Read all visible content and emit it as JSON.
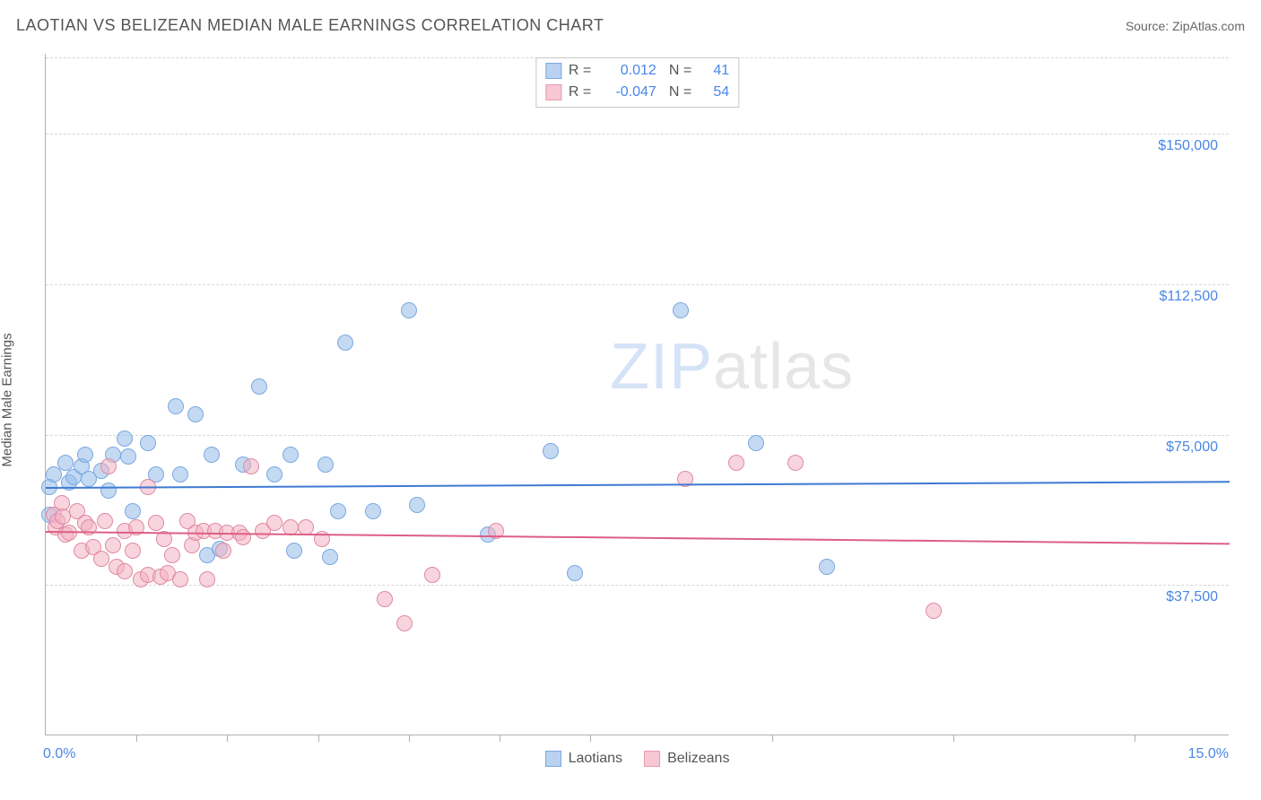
{
  "header": {
    "title": "LAOTIAN VS BELIZEAN MEDIAN MALE EARNINGS CORRELATION CHART",
    "source_label": "Source:",
    "source_value": "ZipAtlas.com"
  },
  "axes": {
    "ylabel": "Median Male Earnings",
    "xmin_label": "0.0%",
    "xmax_label": "15.0%",
    "xlim": [
      0,
      15
    ],
    "ylim": [
      0,
      170000
    ],
    "ygrid": [
      {
        "value": 37500,
        "label": "$37,500"
      },
      {
        "value": 75000,
        "label": "$75,000"
      },
      {
        "value": 112500,
        "label": "$112,500"
      },
      {
        "value": 150000,
        "label": "$150,000"
      }
    ],
    "xticks": [
      1.15,
      2.3,
      3.45,
      4.6,
      5.75,
      6.9,
      9.2,
      11.5,
      13.8
    ]
  },
  "watermark": {
    "zip": "ZIP",
    "atlas": "atlas"
  },
  "legend_top": {
    "rows": [
      {
        "swatch_fill": "#b9d2f1",
        "swatch_border": "#7ba8e0",
        "r_label": "R =",
        "r_value": "0.012",
        "n_label": "N =",
        "n_value": "41"
      },
      {
        "swatch_fill": "#f7c7d4",
        "swatch_border": "#e79ab0",
        "r_label": "R =",
        "r_value": "-0.047",
        "n_label": "N =",
        "n_value": "54"
      }
    ]
  },
  "legend_bottom": {
    "items": [
      {
        "swatch_fill": "#b9d2f1",
        "swatch_border": "#7ba8e0",
        "label": "Laotians"
      },
      {
        "swatch_fill": "#f7c7d4",
        "swatch_border": "#e79ab0",
        "label": "Belizeans"
      }
    ]
  },
  "series": [
    {
      "name": "laotians",
      "point_fill": "rgba(147,188,234,0.55)",
      "point_stroke": "#7ba8e0",
      "point_radius": 9,
      "trend_color": "#3f7ad1",
      "trend_y_at_xmin": 62000,
      "trend_y_at_xmax": 63500,
      "points": [
        [
          0.05,
          62000
        ],
        [
          0.05,
          55000
        ],
        [
          0.1,
          65000
        ],
        [
          0.25,
          68000
        ],
        [
          0.3,
          63000
        ],
        [
          0.35,
          64500
        ],
        [
          0.45,
          67000
        ],
        [
          0.55,
          64000
        ],
        [
          0.5,
          70000
        ],
        [
          0.7,
          66000
        ],
        [
          0.8,
          61000
        ],
        [
          0.85,
          70000
        ],
        [
          1.0,
          74000
        ],
        [
          1.05,
          69500
        ],
        [
          1.1,
          56000
        ],
        [
          1.3,
          73000
        ],
        [
          1.4,
          65000
        ],
        [
          1.65,
          82000
        ],
        [
          1.7,
          65000
        ],
        [
          1.9,
          80000
        ],
        [
          2.05,
          45000
        ],
        [
          2.1,
          70000
        ],
        [
          2.2,
          46500
        ],
        [
          2.5,
          67500
        ],
        [
          2.7,
          87000
        ],
        [
          2.9,
          65000
        ],
        [
          3.1,
          70000
        ],
        [
          3.15,
          46000
        ],
        [
          3.55,
          67500
        ],
        [
          3.6,
          44500
        ],
        [
          3.7,
          56000
        ],
        [
          3.8,
          98000
        ],
        [
          4.15,
          56000
        ],
        [
          4.6,
          106000
        ],
        [
          4.7,
          57500
        ],
        [
          5.6,
          50000
        ],
        [
          6.4,
          71000
        ],
        [
          6.7,
          40500
        ],
        [
          8.05,
          106000
        ],
        [
          9.0,
          73000
        ],
        [
          9.9,
          42000
        ]
      ]
    },
    {
      "name": "belizeans",
      "point_fill": "rgba(243,176,195,0.55)",
      "point_stroke": "#e08aa3",
      "point_radius": 9,
      "trend_color": "#dd5e87",
      "trend_y_at_xmin": 51000,
      "trend_y_at_xmax": 48000,
      "points": [
        [
          0.1,
          55000
        ],
        [
          0.12,
          52000
        ],
        [
          0.15,
          53500
        ],
        [
          0.2,
          58000
        ],
        [
          0.22,
          54500
        ],
        [
          0.25,
          50000
        ],
        [
          0.3,
          50500
        ],
        [
          0.4,
          56000
        ],
        [
          0.45,
          46000
        ],
        [
          0.5,
          53000
        ],
        [
          0.55,
          52000
        ],
        [
          0.6,
          47000
        ],
        [
          0.7,
          44000
        ],
        [
          0.75,
          53500
        ],
        [
          0.8,
          67000
        ],
        [
          0.85,
          47500
        ],
        [
          0.9,
          42000
        ],
        [
          1.0,
          51000
        ],
        [
          1.0,
          41000
        ],
        [
          1.1,
          46000
        ],
        [
          1.15,
          52000
        ],
        [
          1.2,
          39000
        ],
        [
          1.3,
          40000
        ],
        [
          1.3,
          62000
        ],
        [
          1.4,
          53000
        ],
        [
          1.45,
          39500
        ],
        [
          1.5,
          49000
        ],
        [
          1.55,
          40500
        ],
        [
          1.6,
          45000
        ],
        [
          1.7,
          39000
        ],
        [
          1.8,
          53500
        ],
        [
          1.85,
          47500
        ],
        [
          1.9,
          50500
        ],
        [
          2.0,
          51000
        ],
        [
          2.05,
          39000
        ],
        [
          2.15,
          51000
        ],
        [
          2.25,
          46000
        ],
        [
          2.3,
          50500
        ],
        [
          2.45,
          50500
        ],
        [
          2.5,
          49500
        ],
        [
          2.6,
          67000
        ],
        [
          2.75,
          51000
        ],
        [
          2.9,
          53000
        ],
        [
          3.1,
          52000
        ],
        [
          3.3,
          52000
        ],
        [
          3.5,
          49000
        ],
        [
          4.3,
          34000
        ],
        [
          4.55,
          28000
        ],
        [
          4.9,
          40000
        ],
        [
          5.7,
          51000
        ],
        [
          8.1,
          64000
        ],
        [
          8.75,
          68000
        ],
        [
          9.5,
          68000
        ],
        [
          11.25,
          31000
        ]
      ]
    }
  ]
}
